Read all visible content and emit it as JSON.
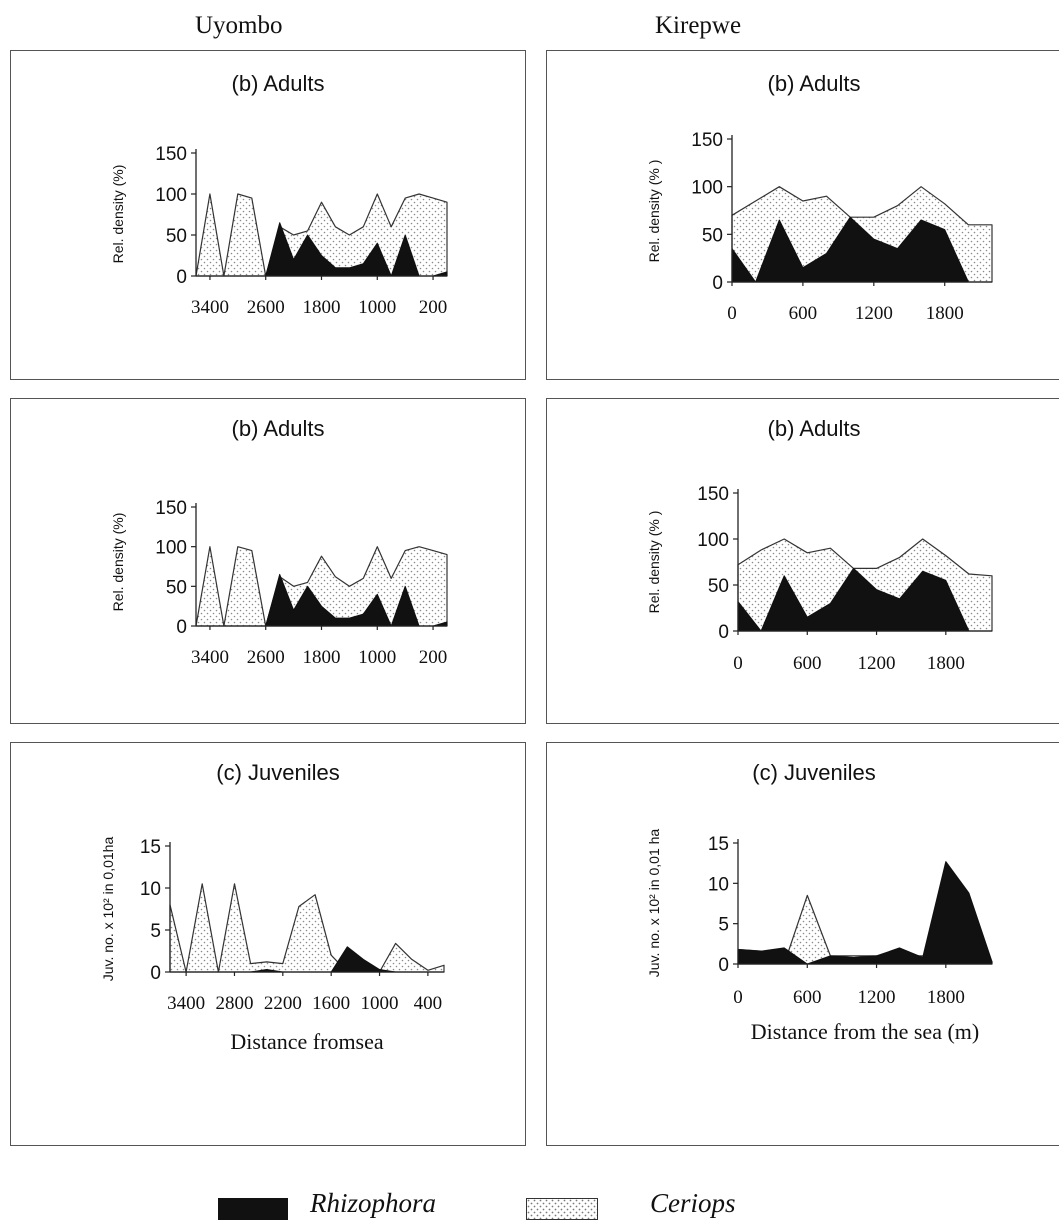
{
  "page": {
    "sites": [
      "Uyombo",
      "Kirepwe"
    ]
  },
  "legend": {
    "items": [
      {
        "label": "Rhizophora",
        "fill": "black"
      },
      {
        "label": "Ceriops",
        "fill": "dots"
      }
    ]
  },
  "colors": {
    "rhizophora": "#111111",
    "ceriops_dot": "#8a8a8a",
    "axis": "#222222"
  },
  "chart_data": [
    {
      "type": "area",
      "site": "Uyombo",
      "title": "(b)  Adults",
      "xlabel": "",
      "ylabel": "Rel. density (%)",
      "ylim": [
        0,
        150
      ],
      "yticks": [
        0,
        50,
        100,
        150
      ],
      "xtick_labels": [
        "3400",
        "2600",
        "1800",
        "1000",
        "200"
      ],
      "x": [
        3600,
        3400,
        3200,
        3000,
        2800,
        2600,
        2400,
        2200,
        2000,
        1800,
        1600,
        1400,
        1200,
        1000,
        800,
        600,
        400,
        200,
        0
      ],
      "series": [
        {
          "name": "Ceriops",
          "values": [
            0,
            100,
            0,
            100,
            95,
            0,
            60,
            50,
            55,
            90,
            60,
            50,
            60,
            100,
            60,
            95,
            100,
            95,
            90
          ]
        },
        {
          "name": "Rhizophora",
          "values": [
            0,
            0,
            0,
            0,
            0,
            0,
            65,
            20,
            50,
            25,
            10,
            10,
            15,
            40,
            0,
            50,
            0,
            0,
            5
          ]
        }
      ]
    },
    {
      "type": "area",
      "site": "Kirepwe",
      "title": "(b) Adults",
      "xlabel": "",
      "ylabel": "Rel. density (% )",
      "ylim": [
        0,
        150
      ],
      "yticks": [
        0,
        50,
        100,
        150
      ],
      "xtick_labels": [
        "0",
        "600",
        "1200",
        "1800"
      ],
      "x": [
        0,
        200,
        400,
        600,
        800,
        1000,
        1200,
        1400,
        1600,
        1800,
        2000,
        2200
      ],
      "series": [
        {
          "name": "Ceriops",
          "values": [
            70,
            85,
            100,
            85,
            90,
            68,
            68,
            80,
            100,
            82,
            60,
            60
          ]
        },
        {
          "name": "Rhizophora",
          "values": [
            35,
            0,
            65,
            15,
            30,
            68,
            45,
            35,
            65,
            55,
            0,
            0
          ]
        }
      ]
    },
    {
      "type": "area",
      "site": "Uyombo",
      "title": "(b)  Adults",
      "xlabel": "",
      "ylabel": "Rel. density (%)",
      "ylim": [
        0,
        150
      ],
      "yticks": [
        0,
        50,
        100,
        150
      ],
      "xtick_labels": [
        "3400",
        "2600",
        "1800",
        "1000",
        "200"
      ],
      "x": [
        3600,
        3400,
        3200,
        3000,
        2800,
        2600,
        2400,
        2200,
        2000,
        1800,
        1600,
        1400,
        1200,
        1000,
        800,
        600,
        400,
        200,
        0
      ],
      "series": [
        {
          "name": "Ceriops",
          "values": [
            0,
            100,
            0,
            100,
            95,
            0,
            62,
            50,
            55,
            88,
            62,
            50,
            60,
            100,
            60,
            95,
            100,
            95,
            90
          ]
        },
        {
          "name": "Rhizophora",
          "values": [
            0,
            0,
            0,
            0,
            0,
            0,
            65,
            20,
            50,
            25,
            10,
            10,
            15,
            40,
            0,
            50,
            0,
            0,
            5
          ]
        }
      ]
    },
    {
      "type": "area",
      "site": "Kirepwe",
      "title": "(b) Adults",
      "xlabel": "",
      "ylabel": "Rel. density (% )",
      "ylim": [
        0,
        150
      ],
      "yticks": [
        0,
        50,
        100,
        150
      ],
      "xtick_labels": [
        "0",
        "600",
        "1200",
        "1800"
      ],
      "x": [
        0,
        200,
        400,
        600,
        800,
        1000,
        1200,
        1400,
        1600,
        1800,
        2000,
        2200
      ],
      "series": [
        {
          "name": "Ceriops",
          "values": [
            72,
            88,
            100,
            85,
            90,
            68,
            68,
            80,
            100,
            82,
            62,
            60
          ]
        },
        {
          "name": "Rhizophora",
          "values": [
            32,
            0,
            60,
            15,
            30,
            68,
            45,
            35,
            65,
            55,
            0,
            0
          ]
        }
      ]
    },
    {
      "type": "area",
      "site": "Uyombo",
      "title": "(c) Juveniles",
      "xlabel": "Distance fromsea",
      "ylabel": "Juv. no. x 10² in 0,01ha",
      "ylim": [
        0,
        15
      ],
      "yticks": [
        0,
        5,
        10,
        15
      ],
      "xtick_labels": [
        "3400",
        "2800",
        "2200",
        "1600",
        "1000",
        "400"
      ],
      "x": [
        3600,
        3400,
        3200,
        3000,
        2800,
        2600,
        2400,
        2200,
        2000,
        1800,
        1600,
        1400,
        1200,
        1000,
        800,
        600,
        400,
        200
      ],
      "series": [
        {
          "name": "Ceriops",
          "values": [
            8,
            0,
            10.5,
            0,
            10.5,
            1,
            1.2,
            1,
            7.8,
            9.2,
            2,
            0,
            1,
            0,
            3.4,
            1.5,
            0.2,
            0.8
          ]
        },
        {
          "name": "Rhizophora",
          "values": [
            0,
            0,
            0,
            0,
            0,
            0,
            0.3,
            0,
            0,
            0,
            0,
            3,
            1.5,
            0.3,
            0,
            0,
            0,
            0
          ]
        }
      ]
    },
    {
      "type": "area",
      "site": "Kirepwe",
      "title": "(c) Juveniles",
      "xlabel": "Distance from the sea (m)",
      "ylabel": "Juv. no. x 10² in 0,01 ha",
      "ylim": [
        0,
        15
      ],
      "yticks": [
        0,
        5,
        10,
        15
      ],
      "xtick_labels": [
        "0",
        "600",
        "1200",
        "1800"
      ],
      "x": [
        0,
        200,
        400,
        600,
        800,
        1000,
        1200,
        1400,
        1600,
        1800,
        2000,
        2200
      ],
      "series": [
        {
          "name": "Ceriops",
          "values": [
            1.8,
            1.6,
            0,
            8.5,
            1,
            1,
            1,
            1,
            1,
            1,
            0.5,
            0.3
          ]
        },
        {
          "name": "Rhizophora",
          "values": [
            1.8,
            1.6,
            2,
            0,
            1,
            0.8,
            1,
            2,
            0.8,
            12.7,
            8.8,
            0.3
          ]
        }
      ]
    }
  ]
}
